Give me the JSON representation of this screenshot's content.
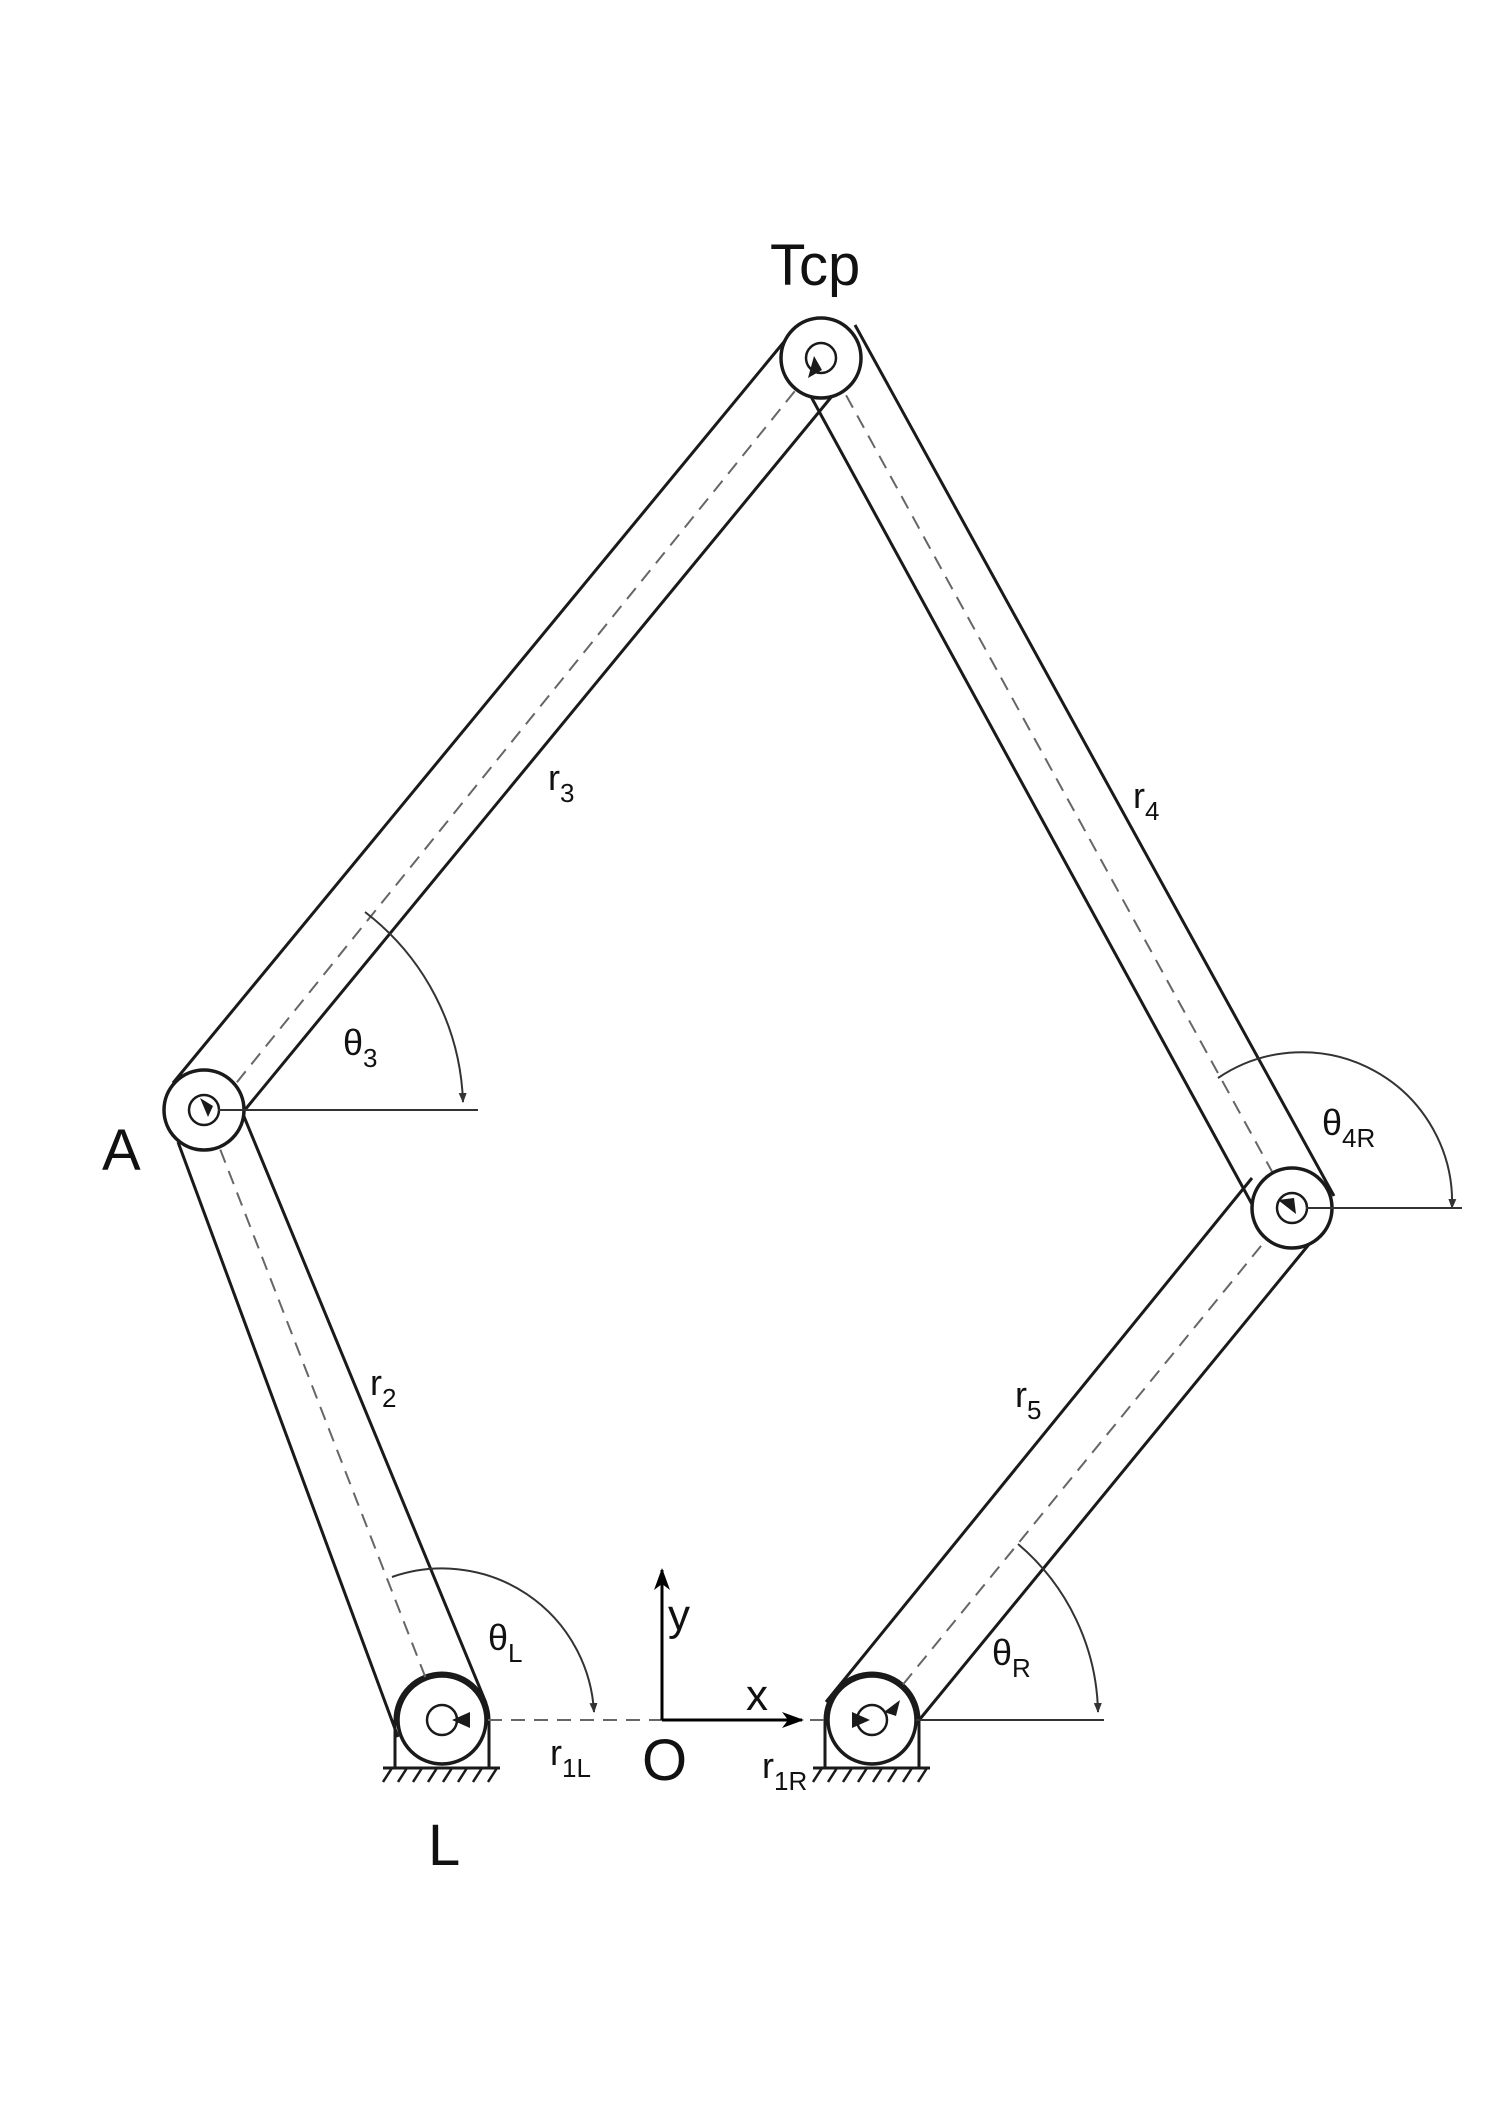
{
  "points": {
    "tcp": "Tcp",
    "a": "A",
    "l": "L",
    "origin": "O"
  },
  "axes": {
    "x": "x",
    "y": "y"
  },
  "links": {
    "r1L": {
      "base": "r",
      "sub": "1L"
    },
    "r1R": {
      "base": "r",
      "sub": "1R"
    },
    "r2": {
      "base": "r",
      "sub": "2"
    },
    "r3": {
      "base": "r",
      "sub": "3"
    },
    "r4": {
      "base": "r",
      "sub": "4"
    },
    "r5": {
      "base": "r",
      "sub": "5"
    }
  },
  "angles": {
    "theta3": {
      "base": "θ",
      "sub": "3"
    },
    "theta4R": {
      "base": "θ",
      "sub": "4R"
    },
    "thetaL": {
      "base": "θ",
      "sub": "L"
    },
    "thetaR": {
      "base": "θ",
      "sub": "R"
    }
  },
  "colors": {
    "line": "#1a1a1a",
    "dashed": "#666666",
    "background": "#ffffff"
  }
}
